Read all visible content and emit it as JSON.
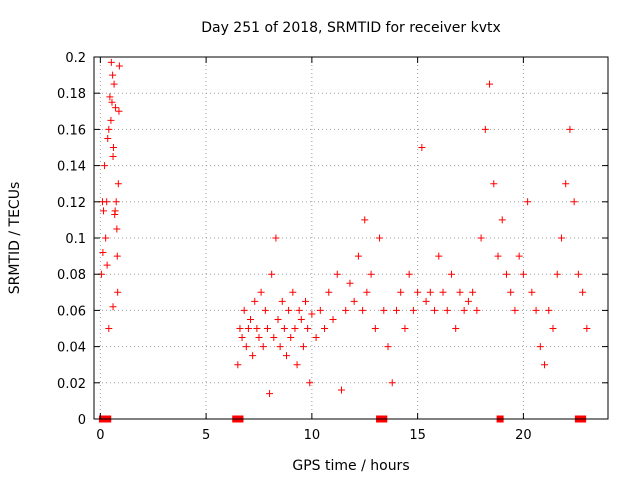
{
  "chart_data": {
    "type": "scatter",
    "title": "Day 251 of 2018, SRMTID for receiver kvtx",
    "xlabel": "GPS time / hours",
    "ylabel": "SRMTID / TECUs",
    "xlim": [
      -0.3,
      24
    ],
    "ylim": [
      0,
      0.2
    ],
    "xticks": [
      0,
      5,
      10,
      15,
      20
    ],
    "xtick_labels": [
      "0",
      "5",
      "10",
      "15",
      "20"
    ],
    "yticks": [
      0,
      0.02,
      0.04,
      0.06,
      0.08,
      0.1,
      0.12,
      0.14,
      0.16,
      0.18,
      0.2
    ],
    "ytick_labels": [
      "0",
      "0.02",
      "0.04",
      "0.06",
      "0.08",
      "0.1",
      "0.12",
      "0.14",
      "0.16",
      "0.18",
      "0.2"
    ],
    "grid": true,
    "marker": "+",
    "color": "#ff0000",
    "data_gap_markers_at_zero": [
      0.1,
      0.35,
      6.4,
      6.6,
      13.2,
      13.4,
      18.9,
      22.6,
      22.8
    ],
    "series": [
      {
        "name": "SRMTID",
        "points": [
          [
            0.05,
            0.08
          ],
          [
            0.1,
            0.12
          ],
          [
            0.12,
            0.092
          ],
          [
            0.15,
            0.115
          ],
          [
            0.2,
            0.14
          ],
          [
            0.25,
            0.1
          ],
          [
            0.3,
            0.12
          ],
          [
            0.32,
            0.085
          ],
          [
            0.35,
            0.155
          ],
          [
            0.4,
            0.16
          ],
          [
            0.45,
            0.178
          ],
          [
            0.5,
            0.165
          ],
          [
            0.52,
            0.197
          ],
          [
            0.55,
            0.175
          ],
          [
            0.58,
            0.19
          ],
          [
            0.6,
            0.145
          ],
          [
            0.62,
            0.15
          ],
          [
            0.65,
            0.185
          ],
          [
            0.68,
            0.113
          ],
          [
            0.7,
            0.115
          ],
          [
            0.72,
            0.172
          ],
          [
            0.75,
            0.12
          ],
          [
            0.78,
            0.105
          ],
          [
            0.8,
            0.09
          ],
          [
            0.82,
            0.07
          ],
          [
            0.85,
            0.13
          ],
          [
            0.88,
            0.17
          ],
          [
            0.9,
            0.195
          ],
          [
            0.6,
            0.062
          ],
          [
            0.4,
            0.05
          ],
          [
            6.5,
            0.03
          ],
          [
            6.6,
            0.05
          ],
          [
            6.7,
            0.045
          ],
          [
            6.8,
            0.06
          ],
          [
            6.9,
            0.04
          ],
          [
            7.0,
            0.05
          ],
          [
            7.1,
            0.055
          ],
          [
            7.2,
            0.035
          ],
          [
            7.3,
            0.065
          ],
          [
            7.4,
            0.05
          ],
          [
            7.5,
            0.045
          ],
          [
            7.6,
            0.07
          ],
          [
            7.7,
            0.04
          ],
          [
            7.8,
            0.06
          ],
          [
            7.9,
            0.05
          ],
          [
            8.0,
            0.014
          ],
          [
            8.1,
            0.08
          ],
          [
            8.2,
            0.045
          ],
          [
            8.3,
            0.1
          ],
          [
            8.4,
            0.055
          ],
          [
            8.5,
            0.04
          ],
          [
            8.6,
            0.065
          ],
          [
            8.7,
            0.05
          ],
          [
            8.8,
            0.035
          ],
          [
            8.9,
            0.06
          ],
          [
            9.0,
            0.045
          ],
          [
            9.1,
            0.07
          ],
          [
            9.2,
            0.05
          ],
          [
            9.3,
            0.03
          ],
          [
            9.4,
            0.06
          ],
          [
            9.5,
            0.055
          ],
          [
            9.6,
            0.04
          ],
          [
            9.7,
            0.065
          ],
          [
            9.8,
            0.05
          ],
          [
            9.9,
            0.02
          ],
          [
            10.0,
            0.058
          ],
          [
            10.2,
            0.045
          ],
          [
            10.4,
            0.06
          ],
          [
            10.6,
            0.05
          ],
          [
            10.8,
            0.07
          ],
          [
            11.0,
            0.055
          ],
          [
            11.2,
            0.08
          ],
          [
            11.4,
            0.016
          ],
          [
            11.6,
            0.06
          ],
          [
            11.8,
            0.075
          ],
          [
            12.0,
            0.065
          ],
          [
            12.2,
            0.09
          ],
          [
            12.4,
            0.06
          ],
          [
            12.5,
            0.11
          ],
          [
            12.6,
            0.07
          ],
          [
            12.8,
            0.08
          ],
          [
            13.0,
            0.05
          ],
          [
            13.2,
            0.1
          ],
          [
            13.4,
            0.06
          ],
          [
            13.6,
            0.04
          ],
          [
            13.8,
            0.02
          ],
          [
            14.0,
            0.06
          ],
          [
            14.2,
            0.07
          ],
          [
            14.4,
            0.05
          ],
          [
            14.6,
            0.08
          ],
          [
            14.8,
            0.06
          ],
          [
            15.0,
            0.07
          ],
          [
            15.2,
            0.15
          ],
          [
            15.4,
            0.065
          ],
          [
            15.6,
            0.07
          ],
          [
            15.8,
            0.06
          ],
          [
            16.0,
            0.09
          ],
          [
            16.2,
            0.07
          ],
          [
            16.4,
            0.06
          ],
          [
            16.6,
            0.08
          ],
          [
            16.8,
            0.05
          ],
          [
            17.0,
            0.07
          ],
          [
            17.2,
            0.06
          ],
          [
            17.4,
            0.065
          ],
          [
            17.6,
            0.07
          ],
          [
            17.8,
            0.06
          ],
          [
            18.0,
            0.1
          ],
          [
            18.2,
            0.16
          ],
          [
            18.4,
            0.185
          ],
          [
            18.6,
            0.13
          ],
          [
            18.8,
            0.09
          ],
          [
            19.0,
            0.11
          ],
          [
            19.2,
            0.08
          ],
          [
            19.4,
            0.07
          ],
          [
            19.6,
            0.06
          ],
          [
            19.8,
            0.09
          ],
          [
            20.0,
            0.08
          ],
          [
            20.2,
            0.12
          ],
          [
            20.4,
            0.07
          ],
          [
            20.6,
            0.06
          ],
          [
            20.8,
            0.04
          ],
          [
            21.0,
            0.03
          ],
          [
            21.2,
            0.06
          ],
          [
            21.4,
            0.05
          ],
          [
            21.6,
            0.08
          ],
          [
            21.8,
            0.1
          ],
          [
            22.0,
            0.13
          ],
          [
            22.2,
            0.16
          ],
          [
            22.4,
            0.12
          ],
          [
            22.6,
            0.08
          ],
          [
            22.8,
            0.07
          ],
          [
            23.0,
            0.05
          ]
        ]
      }
    ]
  }
}
